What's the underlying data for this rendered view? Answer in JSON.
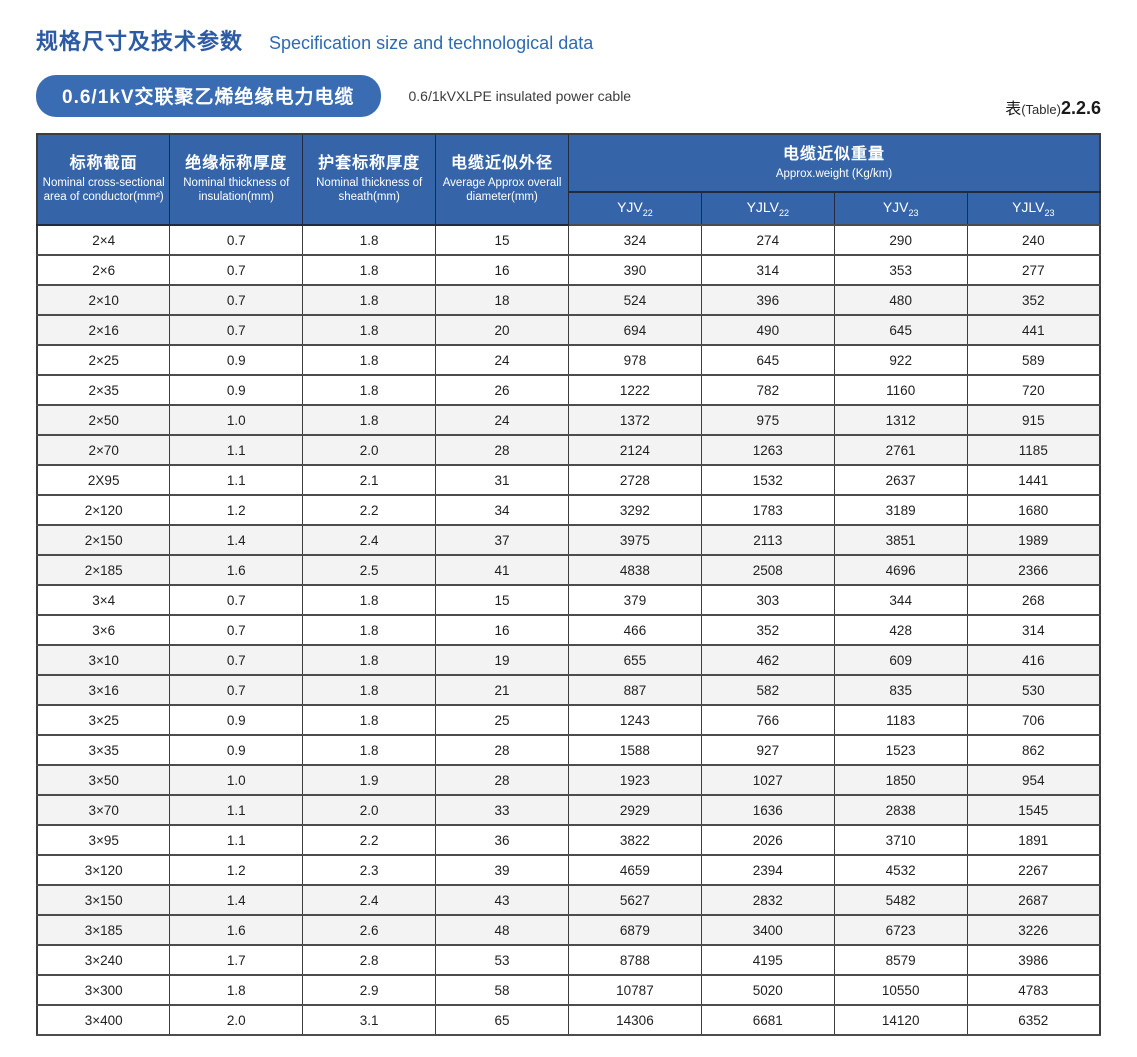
{
  "page": {
    "title_zh": "规格尺寸及技术参数",
    "title_en": "Specification size and technological data",
    "badge_zh": "0.6/1kV交联聚乙烯绝缘电力电缆",
    "badge_en": "0.6/1kVXLPE insulated power cable",
    "table_ref": {
      "zh": "表",
      "paren": "(Table)",
      "num": "2.2.6"
    }
  },
  "colors": {
    "header_blue": "#3565a8",
    "badge_blue": "#3a6cb4",
    "title_blue": "#2d5ba3",
    "row_shade": "#f3f3f3"
  },
  "table": {
    "columns": [
      {
        "zh": "标称截面",
        "en": "Nominal cross-sectional area of conductor(mm²)"
      },
      {
        "zh": "绝缘标称厚度",
        "en": "Nominal thickness of insulation(mm)"
      },
      {
        "zh": "护套标称厚度",
        "en": "Nominal thickness of sheath(mm)"
      },
      {
        "zh": "电缆近似外径",
        "en": "Average Approx overall diameter(mm)"
      }
    ],
    "weight_group": {
      "zh": "电缆近似重量",
      "en": "Approx.weight (Kg/km)"
    },
    "weight_cols": [
      {
        "base": "YJV",
        "sub": "22"
      },
      {
        "base": "YJLV",
        "sub": "22"
      },
      {
        "base": "YJV",
        "sub": "23"
      },
      {
        "base": "YJLV",
        "sub": "23"
      }
    ],
    "rows": [
      [
        "2×4",
        "0.7",
        "1.8",
        "15",
        "324",
        "274",
        "290",
        "240"
      ],
      [
        "2×6",
        "0.7",
        "1.8",
        "16",
        "390",
        "314",
        "353",
        "277"
      ],
      [
        "2×10",
        "0.7",
        "1.8",
        "18",
        "524",
        "396",
        "480",
        "352"
      ],
      [
        "2×16",
        "0.7",
        "1.8",
        "20",
        "694",
        "490",
        "645",
        "441"
      ],
      [
        "2×25",
        "0.9",
        "1.8",
        "24",
        "978",
        "645",
        "922",
        "589"
      ],
      [
        "2×35",
        "0.9",
        "1.8",
        "26",
        "1222",
        "782",
        "1160",
        "720"
      ],
      [
        "2×50",
        "1.0",
        "1.8",
        "24",
        "1372",
        "975",
        "1312",
        "915"
      ],
      [
        "2×70",
        "1.1",
        "2.0",
        "28",
        "2124",
        "1263",
        "2761",
        "1185"
      ],
      [
        "2X95",
        "1.1",
        "2.1",
        "31",
        "2728",
        "1532",
        "2637",
        "1441"
      ],
      [
        "2×120",
        "1.2",
        "2.2",
        "34",
        "3292",
        "1783",
        "3189",
        "1680"
      ],
      [
        "2×150",
        "1.4",
        "2.4",
        "37",
        "3975",
        "2113",
        "3851",
        "1989"
      ],
      [
        "2×185",
        "1.6",
        "2.5",
        "41",
        "4838",
        "2508",
        "4696",
        "2366"
      ],
      [
        "3×4",
        "0.7",
        "1.8",
        "15",
        "379",
        "303",
        "344",
        "268"
      ],
      [
        "3×6",
        "0.7",
        "1.8",
        "16",
        "466",
        "352",
        "428",
        "314"
      ],
      [
        "3×10",
        "0.7",
        "1.8",
        "19",
        "655",
        "462",
        "609",
        "416"
      ],
      [
        "3×16",
        "0.7",
        "1.8",
        "21",
        "887",
        "582",
        "835",
        "530"
      ],
      [
        "3×25",
        "0.9",
        "1.8",
        "25",
        "1243",
        "766",
        "1183",
        "706"
      ],
      [
        "3×35",
        "0.9",
        "1.8",
        "28",
        "1588",
        "927",
        "1523",
        "862"
      ],
      [
        "3×50",
        "1.0",
        "1.9",
        "28",
        "1923",
        "1027",
        "1850",
        "954"
      ],
      [
        "3×70",
        "1.1",
        "2.0",
        "33",
        "2929",
        "1636",
        "2838",
        "1545"
      ],
      [
        "3×95",
        "1.1",
        "2.2",
        "36",
        "3822",
        "2026",
        "3710",
        "1891"
      ],
      [
        "3×120",
        "1.2",
        "2.3",
        "39",
        "4659",
        "2394",
        "4532",
        "2267"
      ],
      [
        "3×150",
        "1.4",
        "2.4",
        "43",
        "5627",
        "2832",
        "5482",
        "2687"
      ],
      [
        "3×185",
        "1.6",
        "2.6",
        "48",
        "6879",
        "3400",
        "6723",
        "3226"
      ],
      [
        "3×240",
        "1.7",
        "2.8",
        "53",
        "8788",
        "4195",
        "8579",
        "3986"
      ],
      [
        "3×300",
        "1.8",
        "2.9",
        "58",
        "10787",
        "5020",
        "10550",
        "4783"
      ],
      [
        "3×400",
        "2.0",
        "3.1",
        "65",
        "14306",
        "6681",
        "14120",
        "6352"
      ]
    ]
  }
}
